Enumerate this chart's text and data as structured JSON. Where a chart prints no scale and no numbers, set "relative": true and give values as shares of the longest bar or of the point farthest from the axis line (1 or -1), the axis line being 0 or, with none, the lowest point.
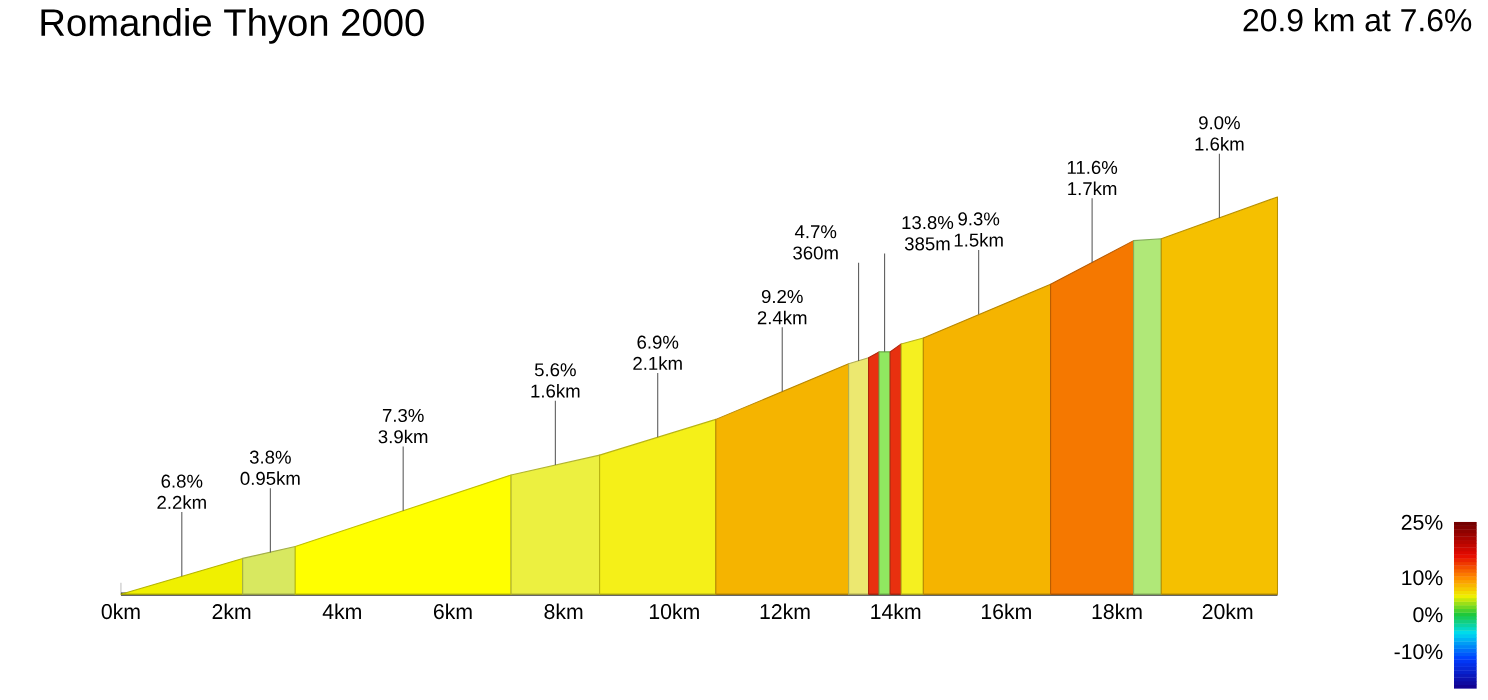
{
  "chart_data": {
    "type": "area",
    "title": "Romandie Thyon 2000",
    "subtitle": "20.9 km at 7.6%",
    "relative": true,
    "xlim": [
      0,
      20.9
    ],
    "xticks": [
      {
        "value": 0,
        "label": "0km"
      },
      {
        "value": 2,
        "label": "2km"
      },
      {
        "value": 4,
        "label": "4km"
      },
      {
        "value": 6,
        "label": "6km"
      },
      {
        "value": 8,
        "label": "8km"
      },
      {
        "value": 10,
        "label": "10km"
      },
      {
        "value": 12,
        "label": "12km"
      },
      {
        "value": 14,
        "label": "14km"
      },
      {
        "value": 16,
        "label": "16km"
      },
      {
        "value": 18,
        "label": "18km"
      },
      {
        "value": 20,
        "label": "20km"
      }
    ],
    "series": [
      {
        "color": "#f0f000",
        "x": [
          0,
          2.2
        ],
        "values": [
          0,
          0.09
        ]
      },
      {
        "color": "#d8e860",
        "x": [
          2.2,
          3.15
        ],
        "values": [
          0.09,
          0.12
        ]
      },
      {
        "color": "#ffff00",
        "x": [
          3.15,
          7.05
        ],
        "values": [
          0.12,
          0.3
        ]
      },
      {
        "color": "#ecf040",
        "x": [
          7.05,
          8.65
        ],
        "values": [
          0.3,
          0.35
        ]
      },
      {
        "color": "#f5f018",
        "x": [
          8.65,
          10.75
        ],
        "values": [
          0.35,
          0.44
        ]
      },
      {
        "color": "#f5b400",
        "x": [
          10.75,
          13.15
        ],
        "values": [
          0.44,
          0.58
        ]
      },
      {
        "color": "#ece870",
        "x": [
          13.15,
          13.51
        ],
        "values": [
          0.58,
          0.595
        ]
      },
      {
        "color": "#e8300f",
        "x": [
          13.51,
          13.7
        ],
        "values": [
          0.595,
          0.61
        ]
      },
      {
        "color": "#90e860",
        "x": [
          13.7,
          13.9
        ],
        "values": [
          0.61,
          0.61
        ]
      },
      {
        "color": "#e8300f",
        "x": [
          13.9,
          14.1
        ],
        "values": [
          0.61,
          0.63
        ]
      },
      {
        "color": "#f5f020",
        "x": [
          14.1,
          14.5
        ],
        "values": [
          0.63,
          0.645
        ]
      },
      {
        "color": "#f5b400",
        "x": [
          14.5,
          16.8
        ],
        "values": [
          0.645,
          0.78
        ]
      },
      {
        "color": "#f57800",
        "x": [
          16.8,
          18.3
        ],
        "values": [
          0.78,
          0.89
        ]
      },
      {
        "color": "#b0e878",
        "x": [
          18.3,
          18.8
        ],
        "values": [
          0.89,
          0.895
        ]
      },
      {
        "color": "#f5c000",
        "x": [
          18.8,
          20.9
        ],
        "values": [
          0.895,
          1.0
        ]
      }
    ],
    "annotations": [
      {
        "text": "6.8% 2.2km",
        "x": 1.1,
        "y": 0.045
      },
      {
        "text": "3.8% 0.95km",
        "x": 2.7,
        "y": 0.105
      },
      {
        "text": "7.3% 3.9km",
        "x": 5.1,
        "y": 0.21
      },
      {
        "text": "5.6% 1.6km",
        "x": 7.85,
        "y": 0.325
      },
      {
        "text": "6.9% 2.1km",
        "x": 9.7,
        "y": 0.395
      },
      {
        "text": "9.2% 2.4km",
        "x": 11.95,
        "y": 0.51
      },
      {
        "text": "4.7% 360m",
        "x": 13.33,
        "y": 0.587
      },
      {
        "text": "13.8% 385m",
        "x": 13.8,
        "y": 0.61
      },
      {
        "text": "9.3% 1.5km",
        "x": 15.5,
        "y": 0.705
      },
      {
        "text": "11.6% 1.7km",
        "x": 17.55,
        "y": 0.835
      },
      {
        "text": "9.0% 1.6km",
        "x": 19.85,
        "y": 0.947
      }
    ],
    "clim": [
      -20,
      25
    ],
    "cticks": [
      {
        "value": 25,
        "label": "25%"
      },
      {
        "value": 10,
        "label": "10%"
      },
      {
        "value": 0,
        "label": "0%"
      },
      {
        "value": -10,
        "label": "-10%"
      }
    ]
  }
}
